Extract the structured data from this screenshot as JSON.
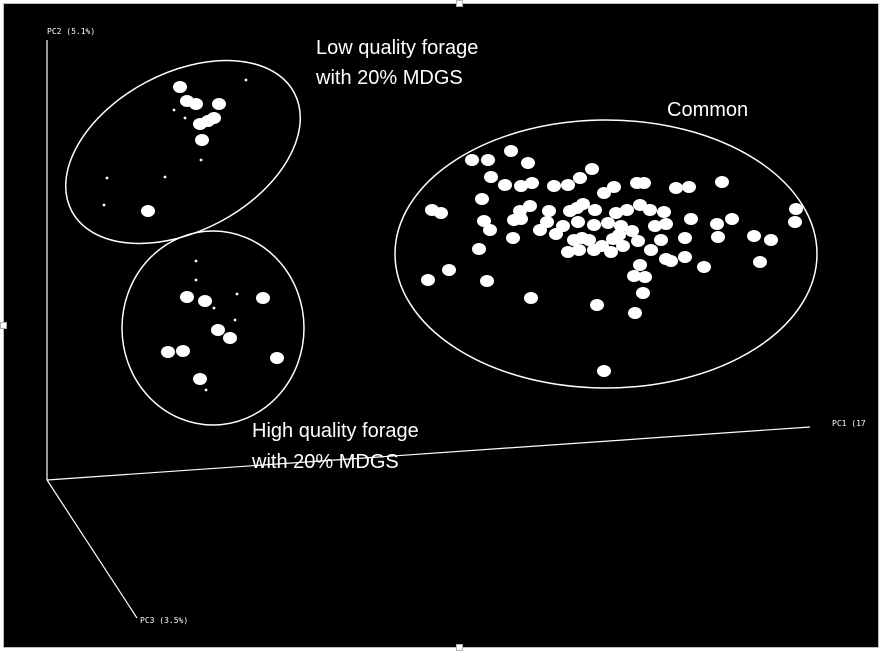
{
  "chart_data": {
    "type": "scatter",
    "subtype": "3d-pca",
    "axes": [
      {
        "name": "PC1",
        "label": "PC1 (17",
        "direction": "horizontal-right"
      },
      {
        "name": "PC2",
        "label": "PC2 (5.1%)",
        "direction": "vertical-up"
      },
      {
        "name": "PC3",
        "label": "PC3 (3.5%)",
        "direction": "diagonal-down"
      }
    ],
    "grid": false,
    "legend": "none",
    "background_color": "#000000",
    "point_color": "#ffffff",
    "clusters": [
      {
        "label_lines": [
          "Low quality forage",
          "with 20% MDGS"
        ],
        "points": [
          [
            180,
            87
          ],
          [
            187,
            101
          ],
          [
            219,
            104
          ],
          [
            208,
            121
          ],
          [
            200,
            124
          ],
          [
            202,
            140
          ],
          [
            148,
            211
          ],
          [
            246,
            80
          ],
          [
            174,
            110
          ],
          [
            185,
            118
          ],
          [
            201,
            160
          ],
          [
            107,
            178
          ],
          [
            165,
            177
          ],
          [
            104,
            205
          ],
          [
            196,
            104
          ],
          [
            214,
            118
          ]
        ]
      },
      {
        "label_lines": [
          "High quality forage",
          "with 20% MDGS"
        ],
        "points": [
          [
            187,
            297
          ],
          [
            205,
            301
          ],
          [
            263,
            298
          ],
          [
            218,
            330
          ],
          [
            230,
            338
          ],
          [
            168,
            352
          ],
          [
            183,
            351
          ],
          [
            277,
            358
          ],
          [
            200,
            379
          ],
          [
            196,
            261
          ],
          [
            196,
            280
          ],
          [
            237,
            294
          ],
          [
            214,
            308
          ],
          [
            235,
            320
          ],
          [
            206,
            390
          ]
        ]
      },
      {
        "label_lines": [
          "Common"
        ],
        "points": [
          [
            472,
            160
          ],
          [
            488,
            160
          ],
          [
            511,
            151
          ],
          [
            528,
            163
          ],
          [
            491,
            177
          ],
          [
            505,
            185
          ],
          [
            521,
            186
          ],
          [
            532,
            183
          ],
          [
            554,
            186
          ],
          [
            568,
            185
          ],
          [
            580,
            178
          ],
          [
            592,
            169
          ],
          [
            604,
            193
          ],
          [
            614,
            187
          ],
          [
            637,
            183
          ],
          [
            644,
            183
          ],
          [
            676,
            188
          ],
          [
            689,
            187
          ],
          [
            722,
            182
          ],
          [
            432,
            210
          ],
          [
            441,
            213
          ],
          [
            482,
            199
          ],
          [
            520,
            211
          ],
          [
            530,
            206
          ],
          [
            549,
            211
          ],
          [
            570,
            211
          ],
          [
            577,
            208
          ],
          [
            583,
            204
          ],
          [
            595,
            210
          ],
          [
            616,
            213
          ],
          [
            627,
            210
          ],
          [
            640,
            205
          ],
          [
            650,
            210
          ],
          [
            664,
            212
          ],
          [
            691,
            219
          ],
          [
            732,
            219
          ],
          [
            796,
            209
          ],
          [
            795,
            222
          ],
          [
            484,
            221
          ],
          [
            514,
            220
          ],
          [
            521,
            219
          ],
          [
            540,
            230
          ],
          [
            556,
            234
          ],
          [
            563,
            226
          ],
          [
            578,
            222
          ],
          [
            594,
            225
          ],
          [
            608,
            223
          ],
          [
            621,
            226
          ],
          [
            632,
            231
          ],
          [
            655,
            226
          ],
          [
            666,
            224
          ],
          [
            717,
            224
          ],
          [
            754,
            236
          ],
          [
            771,
            240
          ],
          [
            490,
            230
          ],
          [
            513,
            238
          ],
          [
            574,
            240
          ],
          [
            589,
            240
          ],
          [
            602,
            246
          ],
          [
            613,
            239
          ],
          [
            623,
            246
          ],
          [
            638,
            241
          ],
          [
            661,
            240
          ],
          [
            685,
            238
          ],
          [
            718,
            237
          ],
          [
            760,
            262
          ],
          [
            479,
            249
          ],
          [
            568,
            252
          ],
          [
            579,
            250
          ],
          [
            594,
            250
          ],
          [
            611,
            252
          ],
          [
            651,
            250
          ],
          [
            666,
            259
          ],
          [
            671,
            261
          ],
          [
            685,
            257
          ],
          [
            704,
            267
          ],
          [
            640,
            265
          ],
          [
            449,
            270
          ],
          [
            428,
            280
          ],
          [
            487,
            281
          ],
          [
            634,
            276
          ],
          [
            645,
            277
          ],
          [
            643,
            293
          ],
          [
            531,
            298
          ],
          [
            597,
            305
          ],
          [
            635,
            313
          ],
          [
            604,
            371
          ],
          [
            582,
            238
          ],
          [
            619,
            235
          ],
          [
            547,
            222
          ]
        ]
      }
    ]
  }
}
